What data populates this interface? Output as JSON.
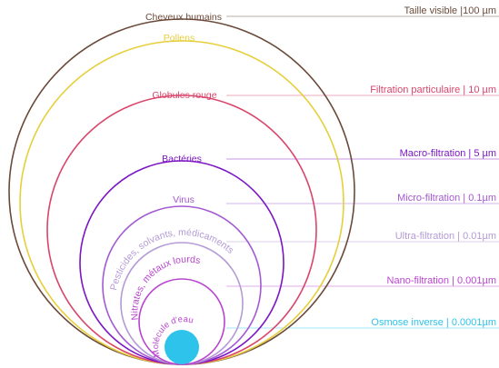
{
  "diagram": {
    "levels": [
      {
        "key": "hair",
        "name": "Cheveux humains",
        "filter": "Taille visible |100 µm",
        "color": "#6b4a3a"
      },
      {
        "key": "pollen",
        "name": "Pollens",
        "filter": "",
        "color": "#e6cf3c"
      },
      {
        "key": "blood",
        "name": "Globules rouge",
        "filter": "Filtration particulaire | 10 µm",
        "color": "#d9456b"
      },
      {
        "key": "bacteria",
        "name": "Bactéries",
        "filter": "Macro-filtration | 5 µm",
        "color": "#7b16c4"
      },
      {
        "key": "virus",
        "name": "Virus",
        "filter": "Micro-filtration | 0.1µm",
        "color": "#a35ad2"
      },
      {
        "key": "pesticide",
        "name": "Pesticides, solvants, médicaments",
        "filter": "Ultra-filtration | 0.01µm",
        "color": "#b49bd6"
      },
      {
        "key": "nitrate",
        "name": "Nitrates, métaux lourds",
        "filter": "Nano-filtration | 0.001µm",
        "color": "#b945cf"
      },
      {
        "key": "water",
        "name": "Molécule d'eau",
        "filter": "Osmose inverse | 0.0001µm",
        "color": "#2ec3ea"
      }
    ]
  }
}
